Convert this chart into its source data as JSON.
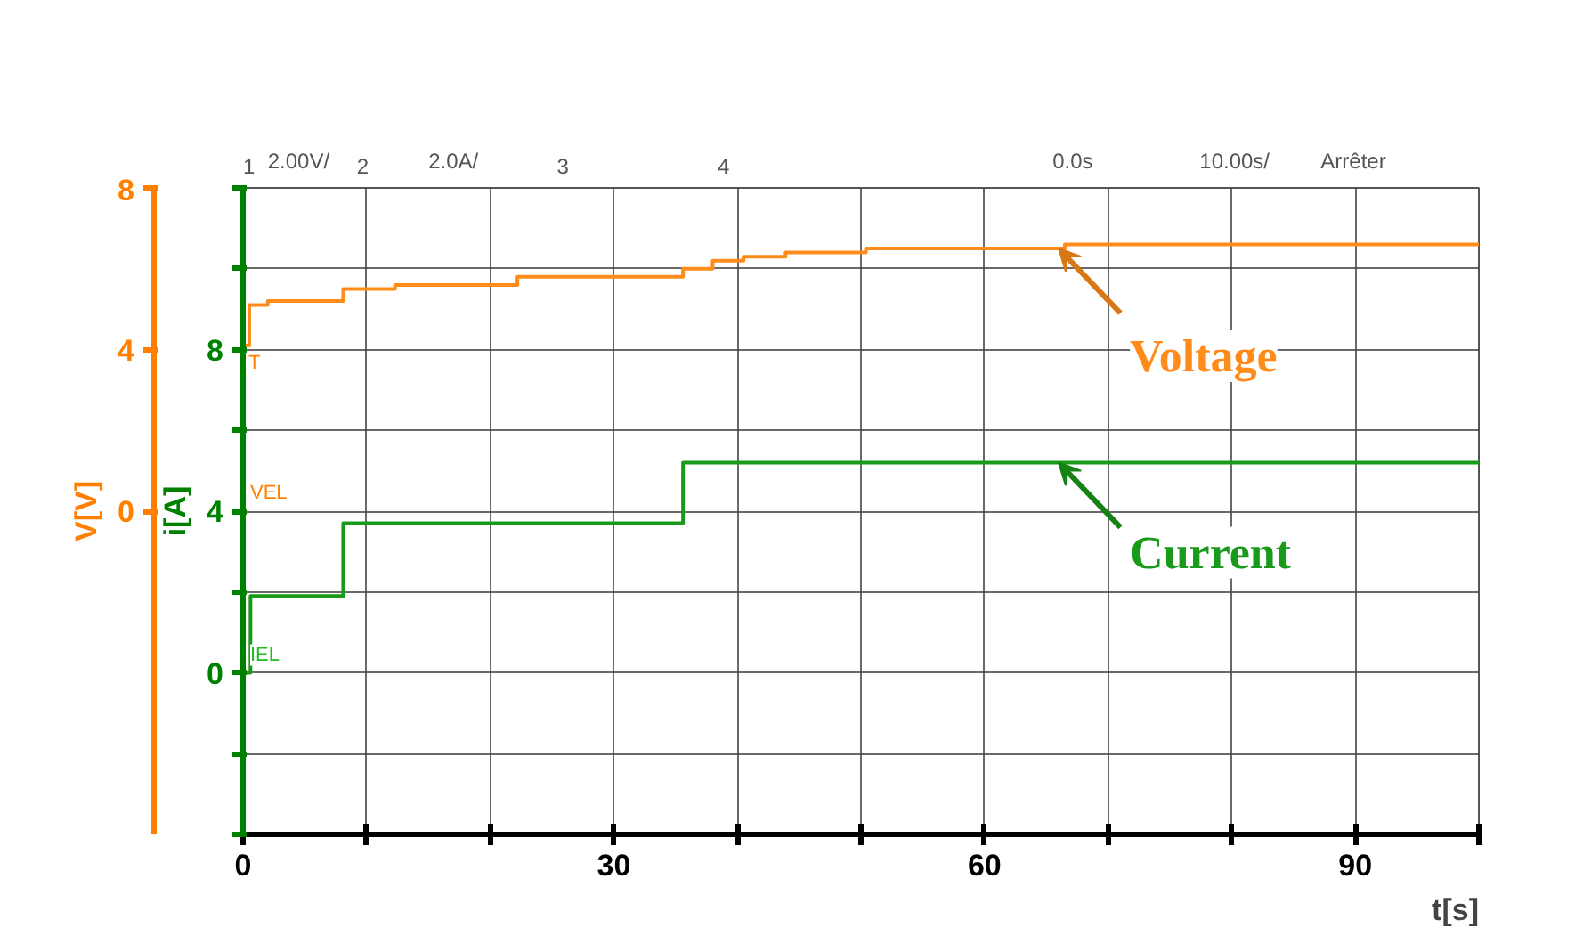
{
  "chart_data": {
    "type": "step",
    "xlabel": "t[s]",
    "ylabel": "i[A]",
    "y2label": "V[V]",
    "x": [
      0,
      0.5,
      2,
      8.1,
      12.3,
      22.2,
      35.6,
      38,
      40.5,
      43.9,
      50.4,
      66.5,
      100
    ],
    "series": [
      {
        "name": "Voltage",
        "color": "#ff8c1a",
        "axis": "y2",
        "values": [
          4.1,
          5.1,
          5.2,
          5.5,
          5.6,
          5.8,
          6.0,
          6.2,
          6.3,
          6.4,
          6.5,
          6.6,
          6.6
        ]
      },
      {
        "name": "Current",
        "color": "#1a9a1a",
        "x": [
          0,
          0.6,
          8.1,
          35.6,
          100
        ],
        "values": [
          0,
          1.9,
          3.7,
          5.2,
          5.2
        ]
      }
    ],
    "xlim": [
      0,
      100
    ],
    "xticks": [
      0,
      {
        "value": 10,
        "label": null
      },
      {
        "value": 20,
        "label": null
      },
      30,
      {
        "value": 40,
        "label": null
      },
      {
        "value": 50,
        "label": null
      },
      60,
      {
        "value": 70,
        "label": null
      },
      {
        "value": 80,
        "label": null
      },
      90,
      {
        "value": 100,
        "label": null
      }
    ],
    "ylim": [
      -4,
      12
    ],
    "yticks": [
      {
        "value": -4,
        "label": null
      },
      {
        "value": -2,
        "label": null
      },
      0,
      {
        "value": 2,
        "label": null
      },
      4,
      {
        "value": 6,
        "label": null
      },
      8,
      {
        "value": 10,
        "label": null
      },
      {
        "value": 12,
        "label": null
      }
    ],
    "y2lim": [
      -8,
      8
    ],
    "y2ticks": [
      0,
      4,
      8
    ],
    "grid": true,
    "legend": "right",
    "annotations": [
      "1",
      "2.00V/",
      "2",
      "2.0A/",
      "3",
      "4",
      "0.0s",
      "10.00s/",
      "Arrêter",
      "T",
      "VEL",
      "IEL"
    ]
  }
}
